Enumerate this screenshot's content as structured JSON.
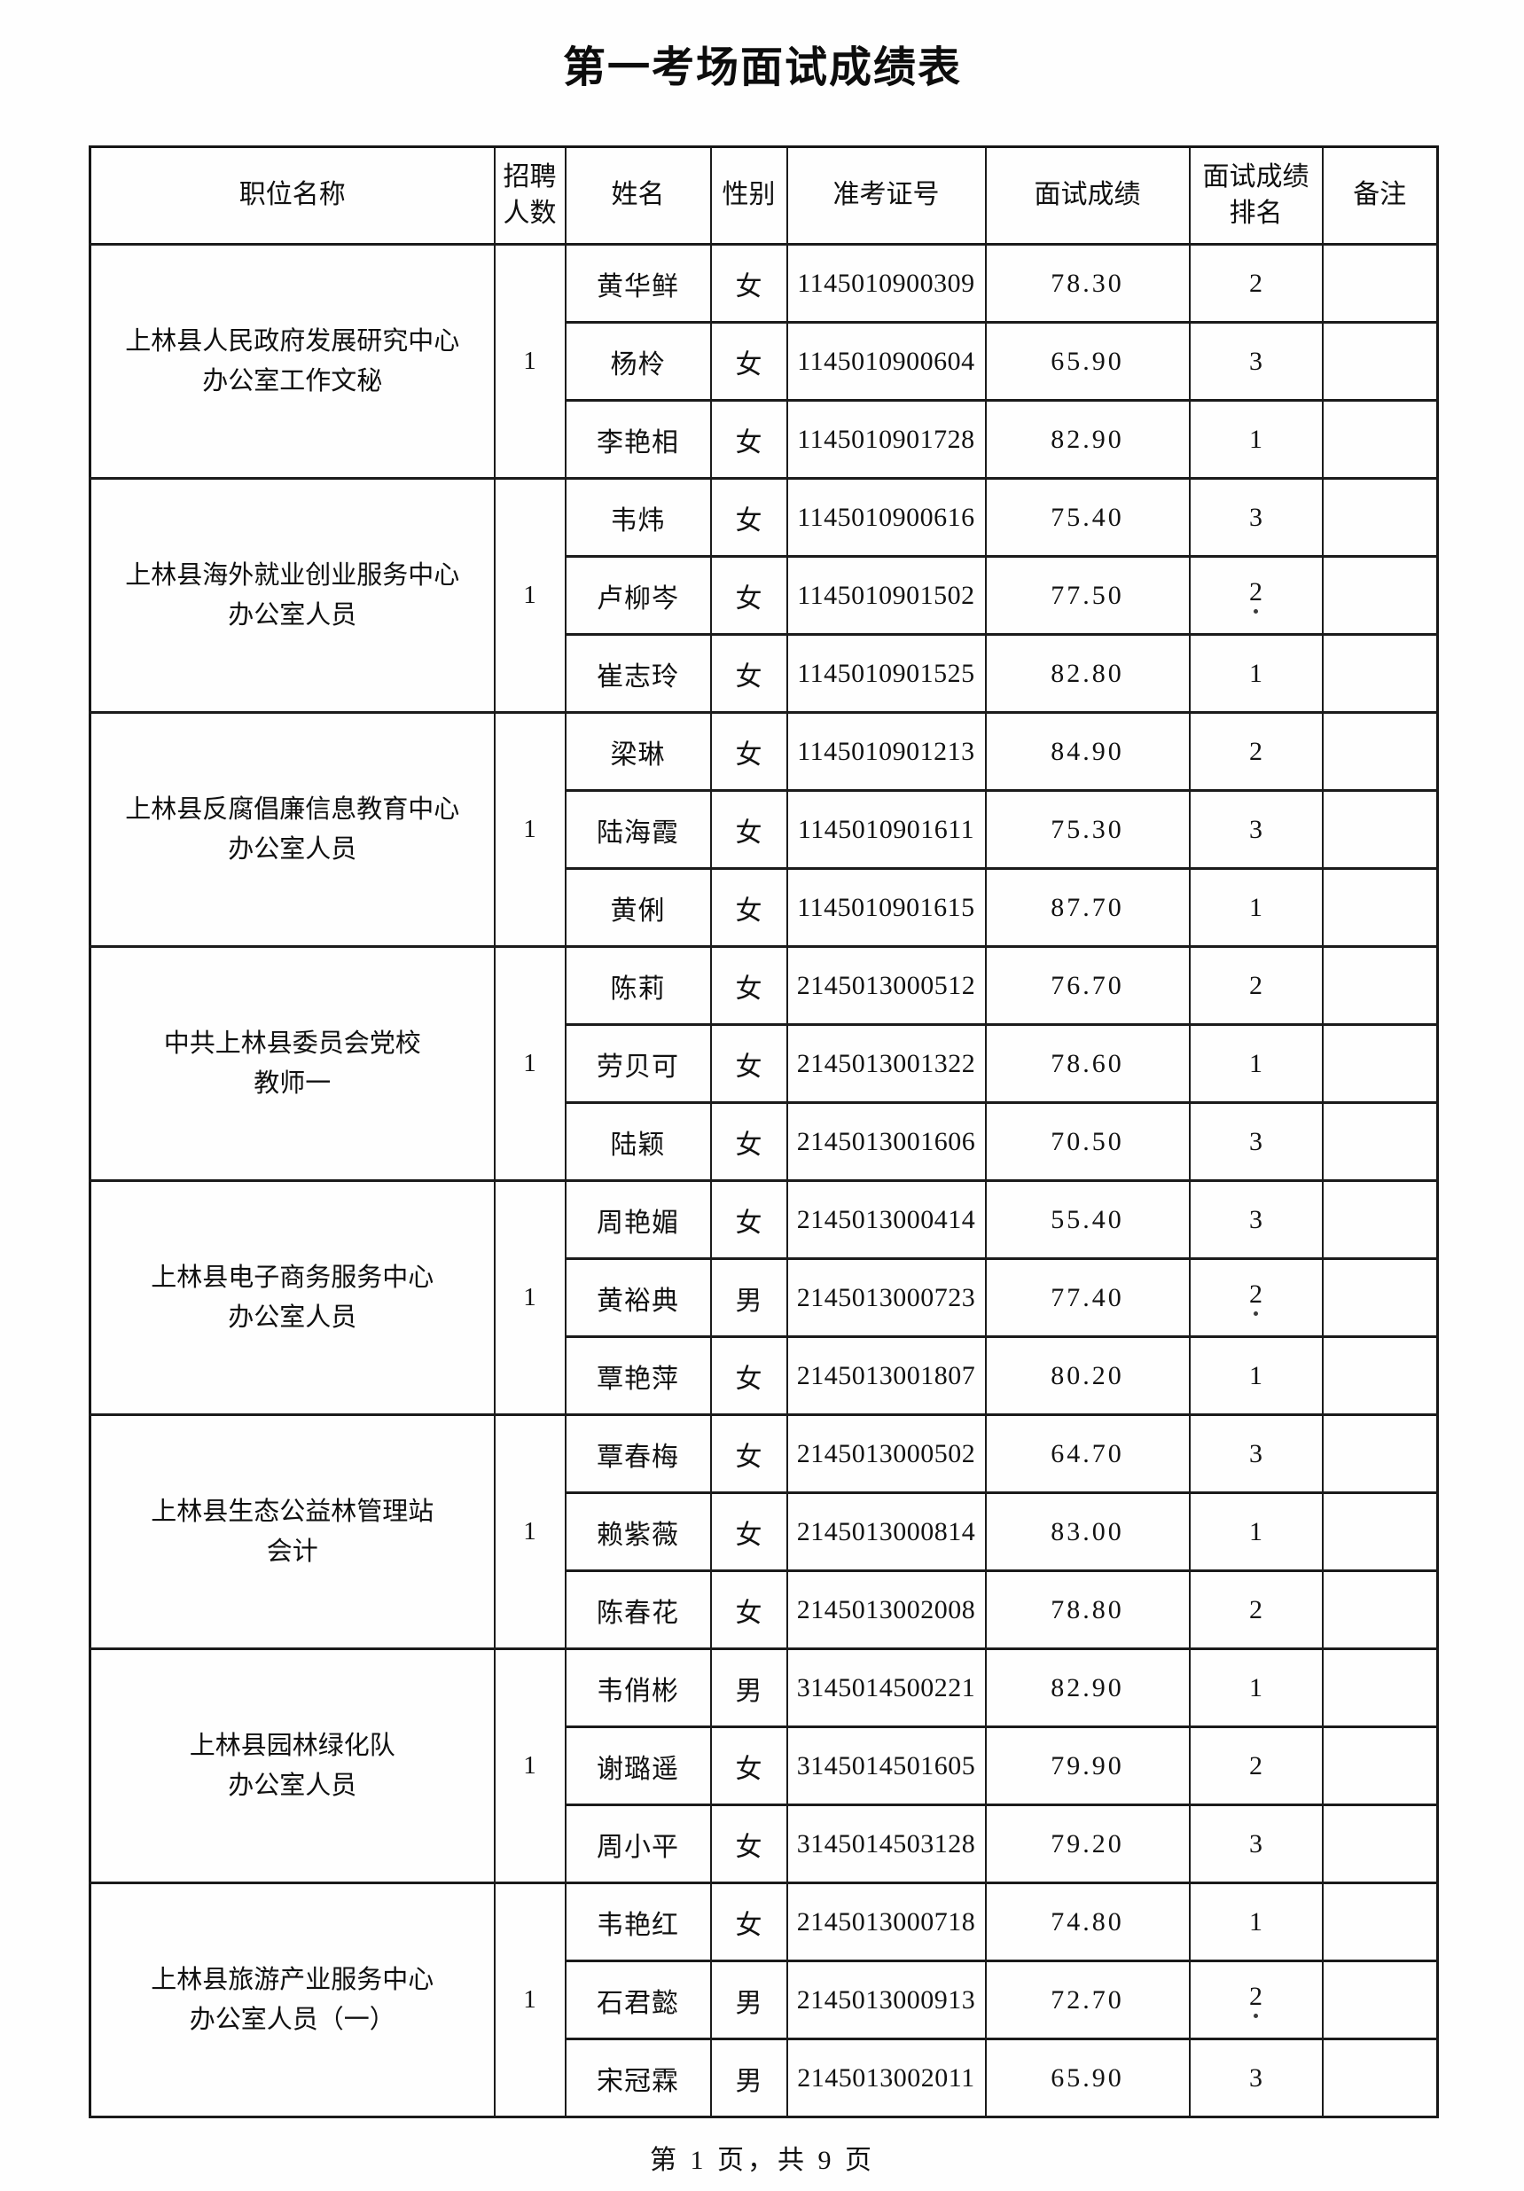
{
  "page": {
    "title": "第一考场面试成绩表",
    "footer": "第 1 页，共 9 页"
  },
  "table": {
    "headers": {
      "position": "职位名称",
      "recruit_count": "招聘\n人数",
      "name": "姓名",
      "gender": "性别",
      "admission_number": "准考证号",
      "interview_score": "面试成绩",
      "score_rank": "面试成绩\n排名",
      "remark": "备注"
    },
    "groups": [
      {
        "position": "上林县人民政府发展研究中心\n办公室工作文秘",
        "recruit_count": "1",
        "candidates": [
          {
            "name": "黄华鲜",
            "gender": "女",
            "admission_number": "1145010900309",
            "score": "78.30",
            "rank": "2",
            "rank_dot": false
          },
          {
            "name": "杨柃",
            "gender": "女",
            "admission_number": "1145010900604",
            "score": "65.90",
            "rank": "3",
            "rank_dot": false
          },
          {
            "name": "李艳相",
            "gender": "女",
            "admission_number": "1145010901728",
            "score": "82.90",
            "rank": "1",
            "rank_dot": false
          }
        ]
      },
      {
        "position": "上林县海外就业创业服务中心\n办公室人员",
        "recruit_count": "1",
        "candidates": [
          {
            "name": "韦炜",
            "gender": "女",
            "admission_number": "1145010900616",
            "score": "75.40",
            "rank": "3",
            "rank_dot": false
          },
          {
            "name": "卢柳岑",
            "gender": "女",
            "admission_number": "1145010901502",
            "score": "77.50",
            "rank": "2",
            "rank_dot": true
          },
          {
            "name": "崔志玲",
            "gender": "女",
            "admission_number": "1145010901525",
            "score": "82.80",
            "rank": "1",
            "rank_dot": false
          }
        ]
      },
      {
        "position": "上林县反腐倡廉信息教育中心\n办公室人员",
        "recruit_count": "1",
        "candidates": [
          {
            "name": "梁琳",
            "gender": "女",
            "admission_number": "1145010901213",
            "score": "84.90",
            "rank": "2",
            "rank_dot": false
          },
          {
            "name": "陆海霞",
            "gender": "女",
            "admission_number": "1145010901611",
            "score": "75.30",
            "rank": "3",
            "rank_dot": false
          },
          {
            "name": "黄俐",
            "gender": "女",
            "admission_number": "1145010901615",
            "score": "87.70",
            "rank": "1",
            "rank_dot": false
          }
        ]
      },
      {
        "position": "中共上林县委员会党校\n教师一",
        "recruit_count": "1",
        "candidates": [
          {
            "name": "陈莉",
            "gender": "女",
            "admission_number": "2145013000512",
            "score": "76.70",
            "rank": "2",
            "rank_dot": false
          },
          {
            "name": "劳贝可",
            "gender": "女",
            "admission_number": "2145013001322",
            "score": "78.60",
            "rank": "1",
            "rank_dot": false
          },
          {
            "name": "陆颖",
            "gender": "女",
            "admission_number": "2145013001606",
            "score": "70.50",
            "rank": "3",
            "rank_dot": false
          }
        ]
      },
      {
        "position": "上林县电子商务服务中心\n办公室人员",
        "recruit_count": "1",
        "candidates": [
          {
            "name": "周艳媚",
            "gender": "女",
            "admission_number": "2145013000414",
            "score": "55.40",
            "rank": "3",
            "rank_dot": false
          },
          {
            "name": "黄裕典",
            "gender": "男",
            "admission_number": "2145013000723",
            "score": "77.40",
            "rank": "2",
            "rank_dot": true
          },
          {
            "name": "覃艳萍",
            "gender": "女",
            "admission_number": "2145013001807",
            "score": "80.20",
            "rank": "1",
            "rank_dot": false
          }
        ]
      },
      {
        "position": "上林县生态公益林管理站\n会计",
        "recruit_count": "1",
        "candidates": [
          {
            "name": "覃春梅",
            "gender": "女",
            "admission_number": "2145013000502",
            "score": "64.70",
            "rank": "3",
            "rank_dot": false
          },
          {
            "name": "赖紫薇",
            "gender": "女",
            "admission_number": "2145013000814",
            "score": "83.00",
            "rank": "1",
            "rank_dot": false
          },
          {
            "name": "陈春花",
            "gender": "女",
            "admission_number": "2145013002008",
            "score": "78.80",
            "rank": "2",
            "rank_dot": false
          }
        ]
      },
      {
        "position": "上林县园林绿化队\n办公室人员",
        "recruit_count": "1",
        "candidates": [
          {
            "name": "韦俏彬",
            "gender": "男",
            "admission_number": "3145014500221",
            "score": "82.90",
            "rank": "1",
            "rank_dot": false
          },
          {
            "name": "谢璐遥",
            "gender": "女",
            "admission_number": "3145014501605",
            "score": "79.90",
            "rank": "2",
            "rank_dot": false
          },
          {
            "name": "周小平",
            "gender": "女",
            "admission_number": "3145014503128",
            "score": "79.20",
            "rank": "3",
            "rank_dot": false
          }
        ]
      },
      {
        "position": "上林县旅游产业服务中心\n办公室人员（一）",
        "recruit_count": "1",
        "candidates": [
          {
            "name": "韦艳红",
            "gender": "女",
            "admission_number": "2145013000718",
            "score": "74.80",
            "rank": "1",
            "rank_dot": false
          },
          {
            "name": "石君懿",
            "gender": "男",
            "admission_number": "2145013000913",
            "score": "72.70",
            "rank": "2",
            "rank_dot": true
          },
          {
            "name": "宋冠霖",
            "gender": "男",
            "admission_number": "2145013002011",
            "score": "65.90",
            "rank": "3",
            "rank_dot": false
          }
        ]
      }
    ]
  }
}
